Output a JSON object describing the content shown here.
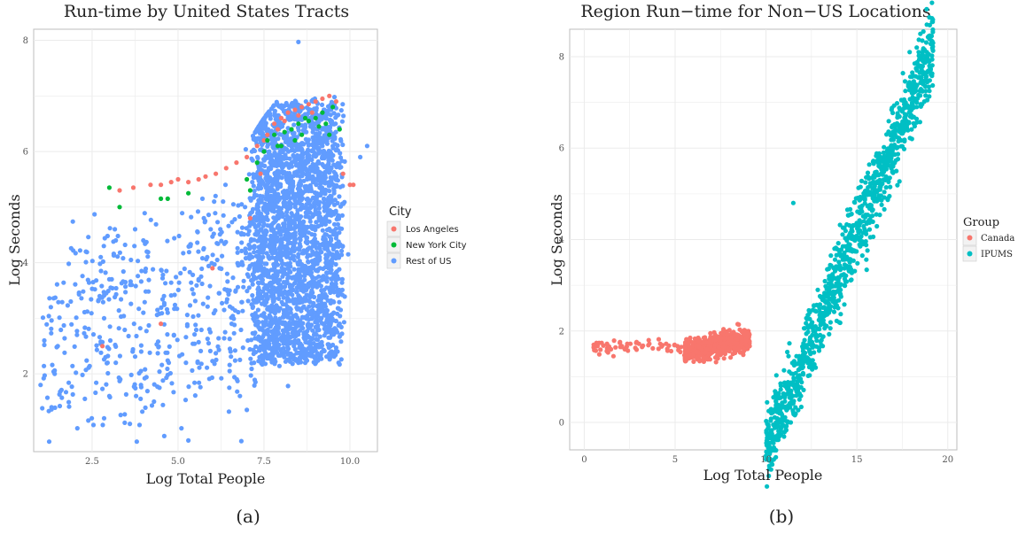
{
  "colors": {
    "la": "#F8766D",
    "nyc": "#00BA38",
    "rest": "#619CFF",
    "canada": "#F8766D",
    "ipums": "#00BFC4",
    "grid": "#ebebeb",
    "panel_border": "#bdbdbd"
  },
  "captions": {
    "a": "(a)",
    "b": "(b)"
  },
  "chart_data": [
    {
      "type": "scatter",
      "title": "Run-time by United States Tracts",
      "xlabel": "Log Total People",
      "ylabel": "Log Seconds",
      "xlim": [
        0.8,
        10.8
      ],
      "ylim": [
        0.6,
        8.2
      ],
      "xticks": [
        2.5,
        5.0,
        7.5,
        10.0
      ],
      "xtick_labels": [
        "2.5",
        "5.0",
        "7.5",
        "10.0"
      ],
      "yticks": [
        2,
        4,
        6,
        8
      ],
      "ytick_labels": [
        "2",
        "4",
        "6",
        "8"
      ],
      "grid": true,
      "legend": {
        "title": "City",
        "position": "right"
      },
      "series": [
        {
          "name": "Los Angeles",
          "color": "#F8766D",
          "points": [
            [
              3.3,
              5.3
            ],
            [
              3.7,
              5.35
            ],
            [
              4.2,
              5.4
            ],
            [
              4.5,
              5.4
            ],
            [
              4.8,
              5.45
            ],
            [
              5.0,
              5.5
            ],
            [
              5.3,
              5.45
            ],
            [
              5.6,
              5.5
            ],
            [
              5.8,
              5.55
            ],
            [
              6.1,
              5.6
            ],
            [
              6.4,
              5.7
            ],
            [
              6.7,
              5.8
            ],
            [
              7.0,
              5.9
            ],
            [
              7.3,
              6.1
            ],
            [
              7.6,
              6.3
            ],
            [
              7.8,
              6.5
            ],
            [
              8.0,
              6.6
            ],
            [
              8.2,
              6.7
            ],
            [
              8.4,
              6.75
            ],
            [
              8.6,
              6.8
            ],
            [
              8.8,
              6.85
            ],
            [
              9.0,
              6.9
            ],
            [
              9.2,
              6.95
            ],
            [
              9.4,
              7.0
            ],
            [
              9.6,
              6.9
            ],
            [
              8.1,
              6.55
            ],
            [
              8.5,
              6.65
            ],
            [
              8.9,
              6.7
            ],
            [
              7.9,
              6.4
            ],
            [
              7.5,
              6.2
            ],
            [
              9.8,
              5.6
            ],
            [
              10.0,
              5.4
            ],
            [
              10.1,
              5.4
            ],
            [
              4.5,
              2.9
            ],
            [
              2.8,
              2.5
            ],
            [
              7.1,
              4.8
            ],
            [
              6.0,
              3.9
            ],
            [
              7.4,
              5.6
            ]
          ]
        },
        {
          "name": "New York City",
          "color": "#00BA38",
          "points": [
            [
              3.0,
              5.35
            ],
            [
              3.3,
              5.0
            ],
            [
              4.5,
              5.15
            ],
            [
              4.7,
              5.15
            ],
            [
              5.3,
              5.25
            ],
            [
              7.0,
              5.5
            ],
            [
              7.1,
              5.3
            ],
            [
              7.3,
              5.8
            ],
            [
              7.5,
              6.0
            ],
            [
              7.6,
              6.2
            ],
            [
              7.8,
              6.3
            ],
            [
              8.0,
              6.1
            ],
            [
              8.1,
              6.35
            ],
            [
              8.3,
              6.4
            ],
            [
              8.5,
              6.5
            ],
            [
              8.6,
              6.3
            ],
            [
              8.8,
              6.55
            ],
            [
              9.0,
              6.6
            ],
            [
              9.1,
              6.45
            ],
            [
              9.3,
              6.5
            ],
            [
              9.5,
              6.8
            ],
            [
              9.7,
              6.4
            ],
            [
              9.2,
              6.7
            ],
            [
              8.7,
              6.6
            ],
            [
              8.4,
              6.2
            ],
            [
              7.9,
              6.1
            ],
            [
              9.4,
              6.3
            ]
          ]
        },
        {
          "name": "Rest of US",
          "color": "#619CFF",
          "points": []
        }
      ]
    },
    {
      "type": "scatter",
      "title": "Region Run−time for Non−US Locations",
      "xlabel": "Log Total People",
      "ylabel": "Log Seconds",
      "xlim": [
        -0.8,
        20.5
      ],
      "ylim": [
        -0.6,
        8.6
      ],
      "xticks": [
        0,
        5,
        10,
        15,
        20
      ],
      "xtick_labels": [
        "0",
        "5",
        "10",
        "15",
        "20"
      ],
      "yticks": [
        0,
        2,
        4,
        6,
        8
      ],
      "ytick_labels": [
        "0",
        "2",
        "4",
        "6",
        "8"
      ],
      "grid": true,
      "legend": {
        "title": "Group",
        "position": "right"
      },
      "series": [
        {
          "name": "Canada",
          "color": "#F8766D",
          "points": []
        },
        {
          "name": "IPUMS",
          "color": "#00BFC4",
          "points": []
        }
      ]
    }
  ]
}
